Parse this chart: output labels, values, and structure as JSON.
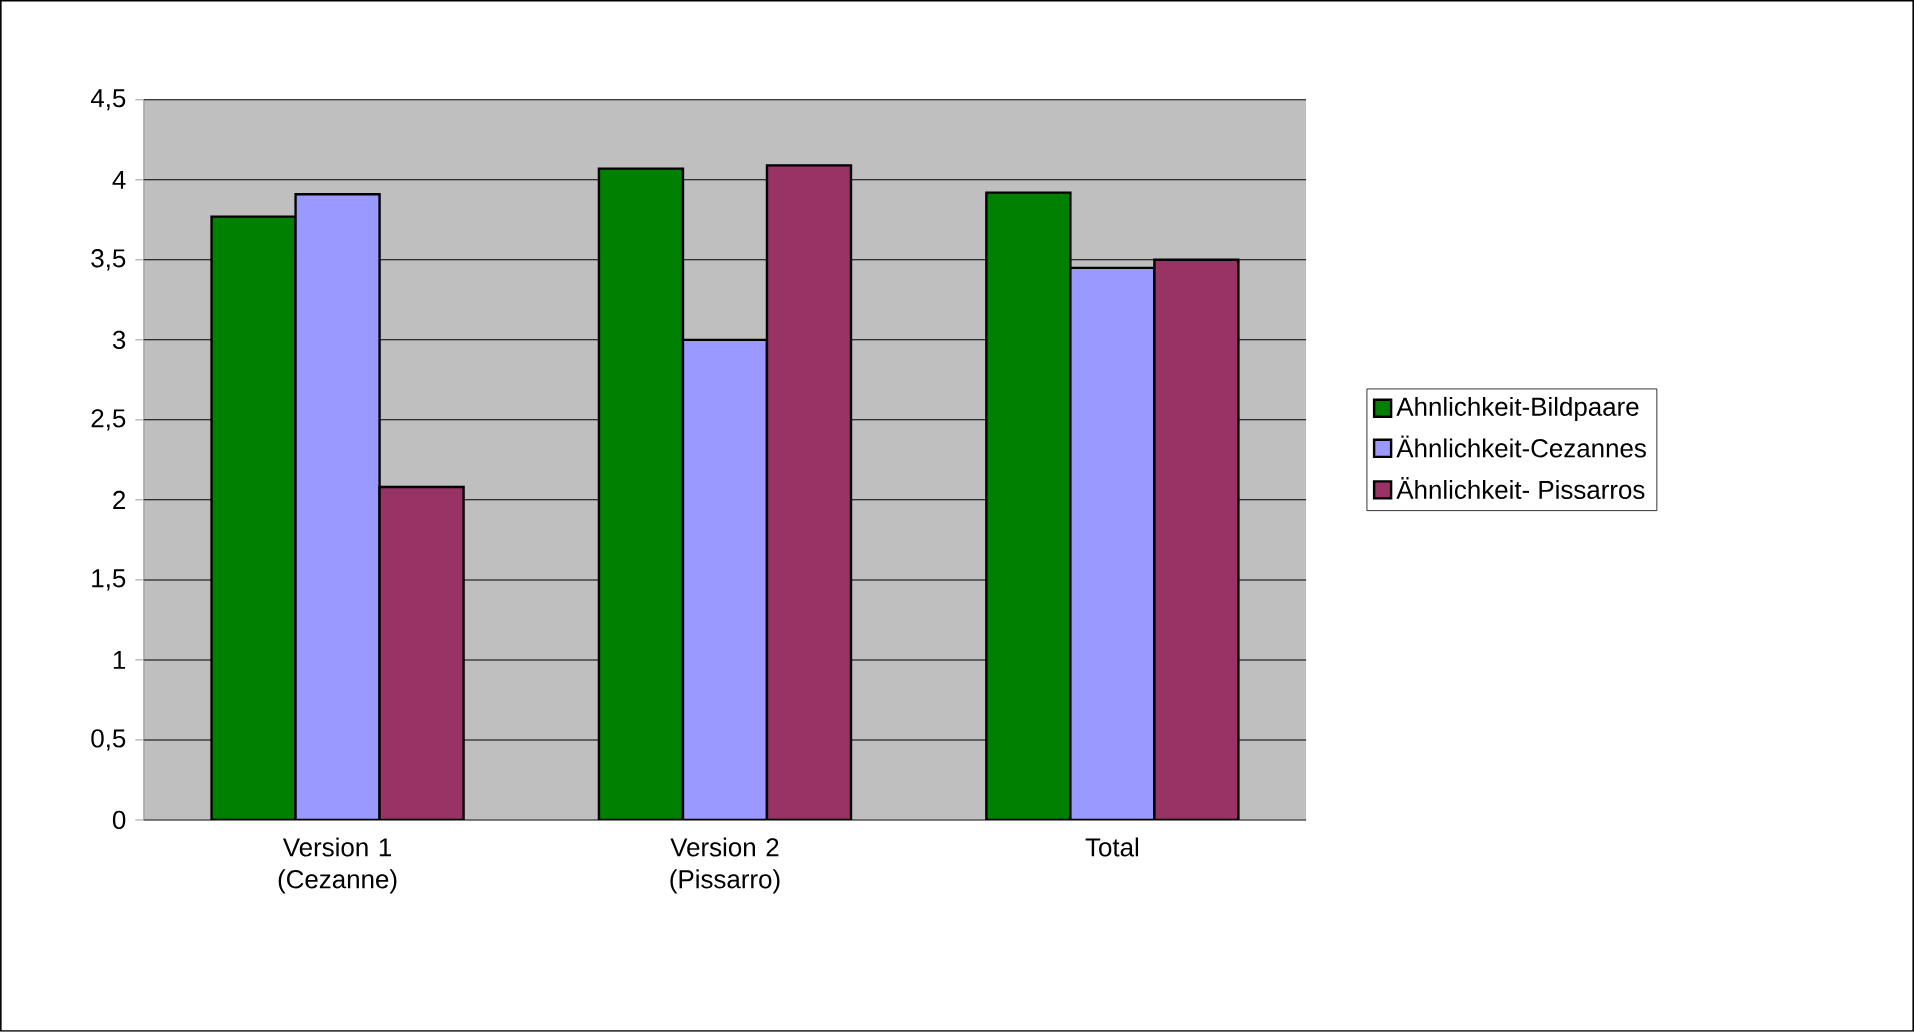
{
  "chart_data": {
    "type": "bar",
    "categories": [
      "Version 1 (Cezanne)",
      "Version 2 (Pissarro)",
      "Total"
    ],
    "series": [
      {
        "name": "Ahnlichkeit-Bildpaare",
        "color": "#008000",
        "values": [
          3.77,
          4.07,
          3.92
        ]
      },
      {
        "name": "Ähnlichkeit-Cezannes",
        "color": "#9999ff",
        "values": [
          3.91,
          3.0,
          3.45
        ]
      },
      {
        "name": "Ähnlichkeit- Pissarros",
        "color": "#993366",
        "values": [
          2.08,
          4.09,
          3.5
        ]
      }
    ],
    "ylim": [
      0,
      4.5
    ],
    "yticks": [
      {
        "value": 0,
        "label": "0"
      },
      {
        "value": 0.5,
        "label": "0,5"
      },
      {
        "value": 1,
        "label": "1"
      },
      {
        "value": 1.5,
        "label": "1,5"
      },
      {
        "value": 2,
        "label": "2"
      },
      {
        "value": 2.5,
        "label": "2,5"
      },
      {
        "value": 3,
        "label": "3"
      },
      {
        "value": 3.5,
        "label": "3,5"
      },
      {
        "value": 4,
        "label": "4"
      },
      {
        "value": 4.5,
        "label": "4,5"
      }
    ],
    "grid": "y",
    "legend": "right"
  }
}
